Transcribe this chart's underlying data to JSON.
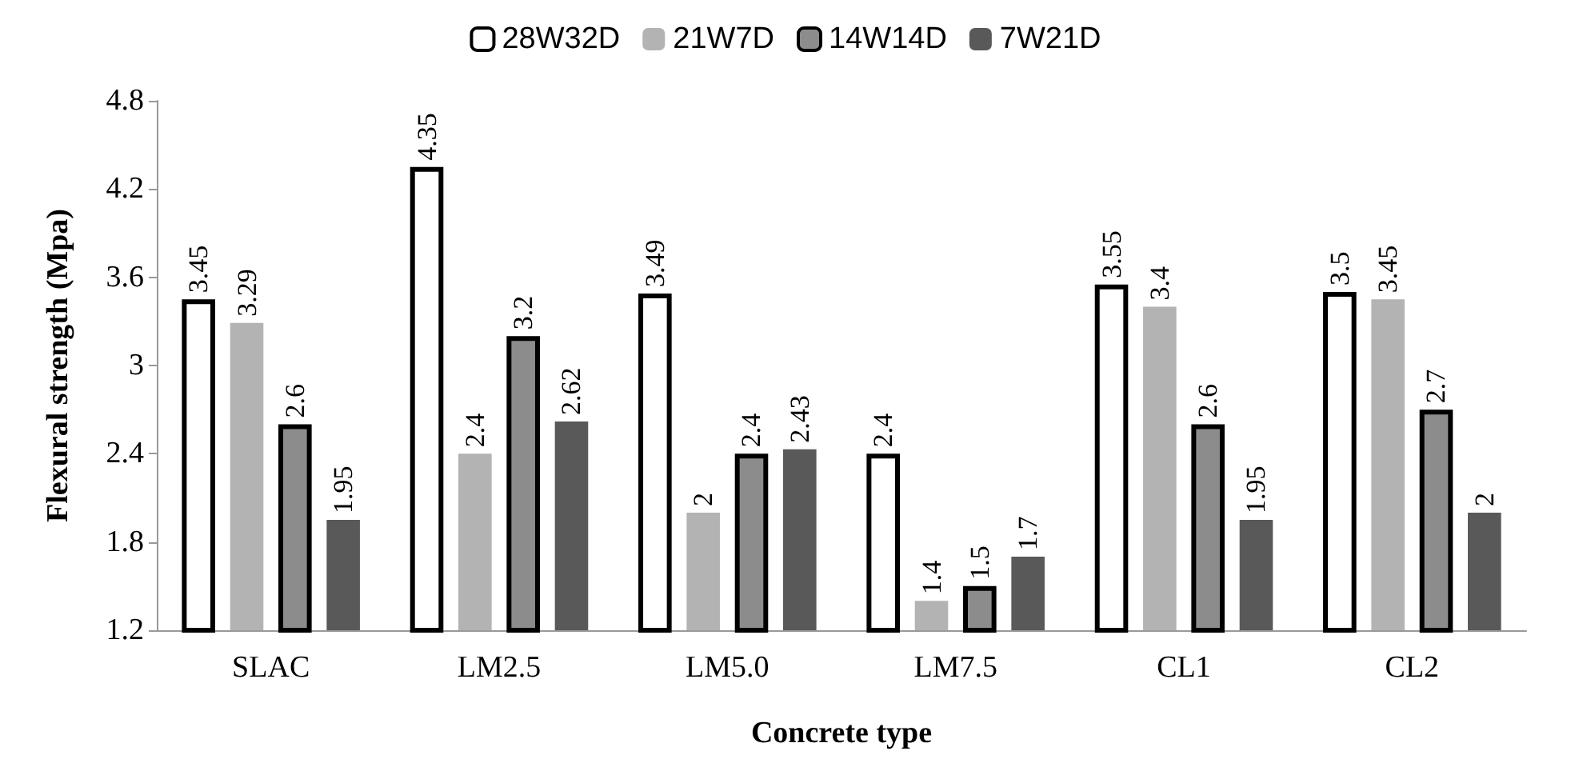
{
  "chart_data": {
    "type": "bar",
    "xlabel": "Concrete type",
    "ylabel": "Flexural strength (Mpa)",
    "categories": [
      "SLAC",
      "LM2.5",
      "LM5.0",
      "LM7.5",
      "CL1",
      "CL2"
    ],
    "series": [
      {
        "name": "28W32D",
        "color": "#ffffff",
        "values": [
          3.45,
          4.35,
          3.49,
          2.4,
          3.55,
          3.5
        ]
      },
      {
        "name": "21W7D",
        "color": "#b3b3b3",
        "values": [
          3.29,
          2.4,
          2,
          1.4,
          3.4,
          3.45
        ]
      },
      {
        "name": "14W14D",
        "color": "#8c8c8c",
        "values": [
          2.6,
          3.2,
          2.4,
          1.5,
          2.6,
          2.7
        ]
      },
      {
        "name": "7W21D",
        "color": "#595959",
        "values": [
          1.95,
          2.62,
          2.43,
          1.7,
          1.95,
          2
        ]
      }
    ],
    "ylim": [
      1.2,
      4.8
    ],
    "yticks": [
      1.2,
      1.8,
      2.4,
      3,
      3.6,
      4.2,
      4.8
    ],
    "grid": false,
    "legend": "top",
    "data_labels": true
  }
}
